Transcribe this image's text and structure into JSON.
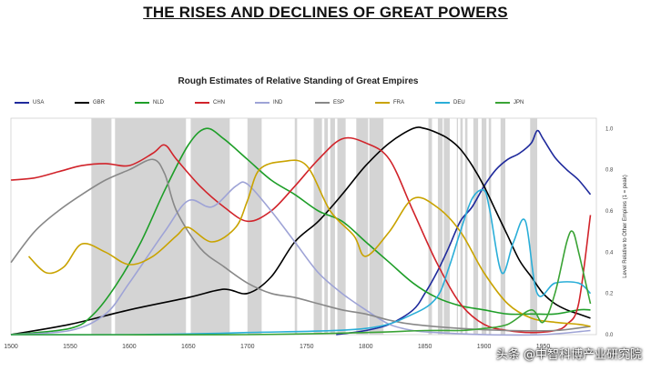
{
  "headline": "THE RISES AND DECLINES OF GREAT POWERS",
  "watermark": "头条 @中智科博产业研究院",
  "chart_data": {
    "type": "line",
    "title": "Rough Estimates of Relative Standing of Great Empires",
    "ylabel": "Level Relative to Other Empires (1 = peak)",
    "xlabel": "",
    "xlim": [
      1500,
      1995
    ],
    "ylim": [
      0,
      1.05
    ],
    "x_ticks": [
      1500,
      1550,
      1600,
      1650,
      1700,
      1750,
      1800,
      1850,
      1900,
      1950
    ],
    "y_ticks": [
      0.0,
      0.2,
      0.4,
      0.6,
      0.8,
      1.0
    ],
    "y_tick_labels": [
      "0.0",
      "0.2",
      "0.4",
      "0.6",
      "0.8",
      "1.0"
    ],
    "legend_position": "top",
    "shaded_periods": [
      [
        1568,
        1585
      ],
      [
        1588,
        1648
      ],
      [
        1652,
        1685
      ],
      [
        1700,
        1712
      ],
      [
        1740,
        1742
      ],
      [
        1756,
        1763
      ],
      [
        1765,
        1768
      ],
      [
        1770,
        1774
      ],
      [
        1776,
        1783
      ],
      [
        1792,
        1802
      ],
      [
        1803,
        1815
      ],
      [
        1853,
        1856
      ],
      [
        1861,
        1865
      ],
      [
        1866,
        1871
      ],
      [
        1877,
        1878
      ],
      [
        1880,
        1882
      ],
      [
        1884,
        1886
      ],
      [
        1891,
        1895
      ],
      [
        1898,
        1902
      ],
      [
        1904,
        1906
      ],
      [
        1914,
        1918
      ],
      [
        1939,
        1945
      ]
    ],
    "series": [
      {
        "name": "USA",
        "color": "#1f2a9c",
        "x": [
          1775,
          1800,
          1820,
          1840,
          1850,
          1860,
          1870,
          1880,
          1890,
          1900,
          1910,
          1920,
          1930,
          1940,
          1945,
          1950,
          1960,
          1970,
          1980,
          1990
        ],
        "y": [
          0.0,
          0.02,
          0.05,
          0.12,
          0.2,
          0.3,
          0.42,
          0.55,
          0.62,
          0.72,
          0.8,
          0.85,
          0.88,
          0.93,
          0.99,
          0.95,
          0.86,
          0.8,
          0.75,
          0.68
        ]
      },
      {
        "name": "GBR",
        "color": "#000000",
        "x": [
          1500,
          1550,
          1600,
          1650,
          1680,
          1700,
          1720,
          1740,
          1760,
          1780,
          1800,
          1820,
          1840,
          1850,
          1860,
          1870,
          1880,
          1890,
          1900,
          1910,
          1920,
          1930,
          1940,
          1950,
          1960,
          1970,
          1980,
          1990
        ],
        "y": [
          0.0,
          0.05,
          0.12,
          0.18,
          0.22,
          0.2,
          0.28,
          0.45,
          0.55,
          0.68,
          0.82,
          0.93,
          1.0,
          1.0,
          0.98,
          0.95,
          0.9,
          0.82,
          0.72,
          0.6,
          0.48,
          0.36,
          0.28,
          0.2,
          0.15,
          0.12,
          0.1,
          0.08
        ]
      },
      {
        "name": "NLD",
        "color": "#1e9e28",
        "x": [
          1500,
          1550,
          1570,
          1590,
          1610,
          1630,
          1650,
          1665,
          1680,
          1700,
          1720,
          1740,
          1760,
          1780,
          1800,
          1820,
          1840,
          1860,
          1880,
          1900,
          1920,
          1940,
          1960,
          1980,
          1990
        ],
        "y": [
          0.0,
          0.03,
          0.1,
          0.25,
          0.45,
          0.7,
          0.92,
          1.0,
          0.95,
          0.85,
          0.75,
          0.68,
          0.6,
          0.55,
          0.45,
          0.35,
          0.25,
          0.18,
          0.14,
          0.12,
          0.1,
          0.1,
          0.1,
          0.12,
          0.12
        ]
      },
      {
        "name": "CHN",
        "color": "#d1232a",
        "x": [
          1500,
          1520,
          1540,
          1560,
          1580,
          1600,
          1620,
          1630,
          1640,
          1660,
          1680,
          1700,
          1720,
          1740,
          1760,
          1780,
          1800,
          1820,
          1840,
          1860,
          1880,
          1900,
          1920,
          1940,
          1960,
          1970,
          1980,
          1990
        ],
        "y": [
          0.75,
          0.76,
          0.79,
          0.82,
          0.83,
          0.82,
          0.88,
          0.92,
          0.85,
          0.72,
          0.62,
          0.55,
          0.6,
          0.72,
          0.85,
          0.95,
          0.93,
          0.85,
          0.6,
          0.35,
          0.15,
          0.05,
          0.02,
          0.01,
          0.02,
          0.05,
          0.15,
          0.58
        ]
      },
      {
        "name": "IND",
        "color": "#9ea3d6",
        "x": [
          1500,
          1550,
          1580,
          1600,
          1630,
          1650,
          1670,
          1690,
          1700,
          1720,
          1740,
          1760,
          1780,
          1800,
          1820,
          1840,
          1860,
          1900,
          1950,
          1990
        ],
        "y": [
          0.0,
          0.02,
          0.1,
          0.25,
          0.5,
          0.65,
          0.62,
          0.72,
          0.73,
          0.6,
          0.45,
          0.3,
          0.2,
          0.12,
          0.05,
          0.02,
          0.01,
          0.0,
          0.0,
          0.02
        ]
      },
      {
        "name": "ESP",
        "color": "#888888",
        "x": [
          1500,
          1520,
          1540,
          1560,
          1580,
          1600,
          1620,
          1630,
          1640,
          1660,
          1680,
          1700,
          1720,
          1740,
          1760,
          1780,
          1800,
          1820,
          1840,
          1880,
          1920,
          1960,
          1990
        ],
        "y": [
          0.35,
          0.5,
          0.6,
          0.68,
          0.75,
          0.8,
          0.85,
          0.78,
          0.6,
          0.42,
          0.33,
          0.25,
          0.2,
          0.18,
          0.15,
          0.12,
          0.1,
          0.07,
          0.05,
          0.03,
          0.02,
          0.02,
          0.04
        ]
      },
      {
        "name": "FRA",
        "color": "#c9a300",
        "x": [
          1515,
          1530,
          1545,
          1560,
          1580,
          1600,
          1620,
          1640,
          1650,
          1670,
          1690,
          1700,
          1710,
          1730,
          1750,
          1770,
          1790,
          1800,
          1820,
          1840,
          1860,
          1880,
          1900,
          1920,
          1940,
          1960,
          1980,
          1990
        ],
        "y": [
          0.38,
          0.3,
          0.33,
          0.44,
          0.4,
          0.34,
          0.38,
          0.48,
          0.52,
          0.45,
          0.52,
          0.65,
          0.8,
          0.84,
          0.82,
          0.6,
          0.48,
          0.38,
          0.5,
          0.66,
          0.62,
          0.5,
          0.3,
          0.15,
          0.08,
          0.06,
          0.05,
          0.04
        ]
      },
      {
        "name": "DEU",
        "color": "#2aaed8",
        "x": [
          1500,
          1600,
          1700,
          1800,
          1840,
          1860,
          1870,
          1880,
          1890,
          1900,
          1905,
          1915,
          1925,
          1935,
          1945,
          1960,
          1980,
          1990
        ],
        "y": [
          0.0,
          0.0,
          0.01,
          0.03,
          0.1,
          0.18,
          0.32,
          0.5,
          0.66,
          0.7,
          0.6,
          0.3,
          0.45,
          0.55,
          0.2,
          0.25,
          0.25,
          0.2
        ]
      },
      {
        "name": "JPN",
        "color": "#3aa335",
        "x": [
          1500,
          1700,
          1800,
          1850,
          1880,
          1900,
          1920,
          1940,
          1950,
          1960,
          1970,
          1975,
          1980,
          1990
        ],
        "y": [
          0.0,
          0.0,
          0.01,
          0.02,
          0.02,
          0.03,
          0.05,
          0.12,
          0.06,
          0.2,
          0.45,
          0.5,
          0.4,
          0.15
        ]
      }
    ]
  }
}
